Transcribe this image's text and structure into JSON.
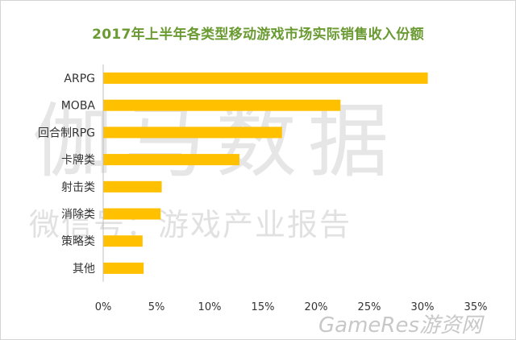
{
  "chart_data": {
    "type": "bar",
    "orientation": "horizontal",
    "title": "2017年上半年各类型移动游戏市场实际销售收入份额",
    "categories": [
      "ARPG",
      "MOBA",
      "回合制RPG",
      "卡牌类",
      "射击类",
      "消除类",
      "策略类",
      "其他"
    ],
    "values": [
      30.5,
      22.3,
      16.8,
      12.8,
      5.5,
      5.4,
      3.7,
      3.8
    ],
    "xlim": [
      0,
      35
    ],
    "x_ticks": [
      "0%",
      "5%",
      "10%",
      "15%",
      "20%",
      "25%",
      "30%",
      "35%"
    ],
    "bar_color": "#ffc000",
    "grid": false,
    "legend": "none"
  },
  "watermark": {
    "main": "伽马数据",
    "subtitle": "微信号：游戏产业报告",
    "corner": "GameRes游资网"
  },
  "colors": {
    "title": "#6a9a32",
    "bar": "#ffc000",
    "axis": "#bfbfbf"
  }
}
